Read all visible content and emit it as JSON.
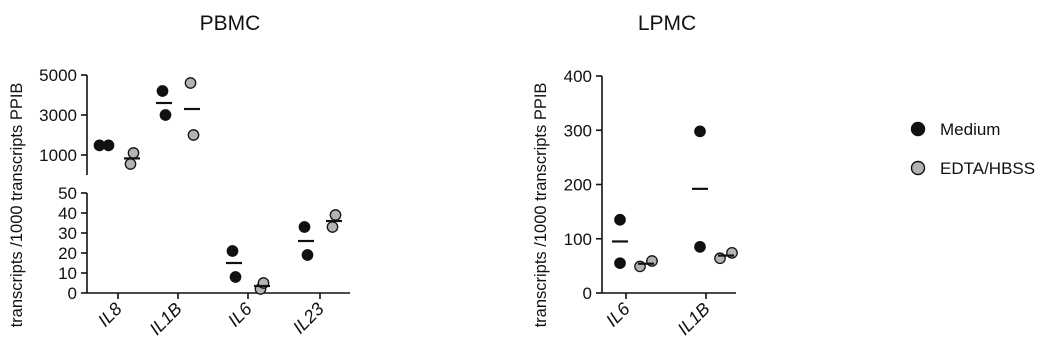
{
  "legend": [
    {
      "label": "Medium",
      "color": "#111111"
    },
    {
      "label": "EDTA/HBSS",
      "color": "#b3b3b3"
    }
  ],
  "chart_data": [
    {
      "type": "scatter",
      "title": "PBMC",
      "ylabel": "transcripts /1000 transcripts PPIB",
      "y_axis_break": true,
      "upper_segment": {
        "ylim": [
          0,
          5000
        ],
        "ticks": [
          1000,
          3000,
          5000
        ]
      },
      "lower_segment": {
        "ylim": [
          0,
          50
        ],
        "ticks": [
          0,
          10,
          20,
          30,
          40,
          50
        ]
      },
      "categories": [
        "IL8",
        "IL1B",
        "IL6",
        "IL23"
      ],
      "series": [
        {
          "name": "Medium",
          "points": [
            {
              "category": "IL8",
              "values": [
                1480,
                1480
              ],
              "mean": 1480
            },
            {
              "category": "IL1B",
              "values": [
                4200,
                3000
              ],
              "mean": 3600
            },
            {
              "category": "IL6",
              "values": [
                21,
                8
              ],
              "mean": 15
            },
            {
              "category": "IL23",
              "values": [
                33,
                19
              ],
              "mean": 26
            }
          ]
        },
        {
          "name": "EDTA/HBSS",
          "points": [
            {
              "category": "IL8",
              "values": [
                550,
                1100
              ],
              "mean": 830
            },
            {
              "category": "IL1B",
              "values": [
                4600,
                2000
              ],
              "mean": 3300
            },
            {
              "category": "IL6",
              "values": [
                2,
                5
              ],
              "mean": 3.5
            },
            {
              "category": "IL23",
              "values": [
                33,
                39
              ],
              "mean": 36
            }
          ]
        }
      ]
    },
    {
      "type": "scatter",
      "title": "LPMC",
      "ylabel": "transcripts /1000 transcripts PPIB",
      "ylim": [
        0,
        400
      ],
      "yticks": [
        0,
        100,
        200,
        300,
        400
      ],
      "categories": [
        "IL6",
        "IL1B"
      ],
      "series": [
        {
          "name": "Medium",
          "points": [
            {
              "category": "IL6",
              "values": [
                135,
                55
              ],
              "mean": 95
            },
            {
              "category": "IL1B",
              "values": [
                298,
                85
              ],
              "mean": 192
            }
          ]
        },
        {
          "name": "EDTA/HBSS",
          "points": [
            {
              "category": "IL6",
              "values": [
                49,
                59
              ],
              "mean": 54
            },
            {
              "category": "IL1B",
              "values": [
                64,
                74
              ],
              "mean": 69
            }
          ]
        }
      ]
    }
  ]
}
